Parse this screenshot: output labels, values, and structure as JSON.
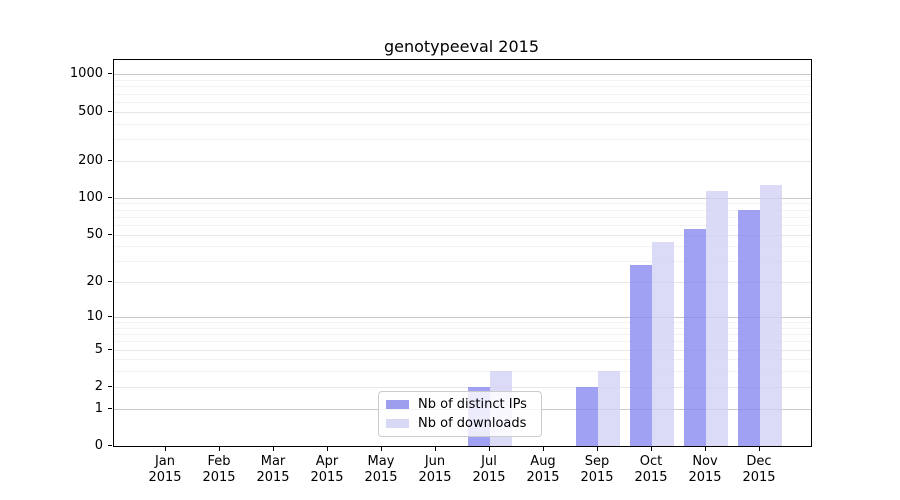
{
  "chart_data": {
    "type": "bar",
    "title": "genotypeeval 2015",
    "y_scale": "log1p",
    "y_ticks": [
      0,
      1,
      2,
      5,
      10,
      20,
      50,
      100,
      200,
      500,
      1000
    ],
    "y_minor_gridlines": [
      3,
      4,
      6,
      7,
      8,
      9,
      30,
      40,
      60,
      70,
      80,
      90,
      300,
      400,
      600,
      700,
      800,
      900
    ],
    "ylim": [
      0,
      1300
    ],
    "grid": true,
    "months": [
      "Jan",
      "Feb",
      "Mar",
      "Apr",
      "May",
      "Jun",
      "Jul",
      "Aug",
      "Sep",
      "Oct",
      "Nov",
      "Dec"
    ],
    "year": "2015",
    "legend_position": "bottom-center",
    "series": [
      {
        "name": "Nb of distinct IPs",
        "color": "#9e9eef",
        "fill": "rgba(138,138,240,0.8)",
        "values": [
          0,
          0,
          0,
          0,
          0,
          0,
          2,
          0,
          2,
          28,
          55,
          80
        ]
      },
      {
        "name": "Nb of downloads",
        "color": "#d9d9f6",
        "fill": "rgba(210,210,246,0.8)",
        "values": [
          0,
          0,
          0,
          0,
          0,
          0,
          3,
          0,
          3,
          43,
          113,
          128
        ]
      }
    ]
  }
}
